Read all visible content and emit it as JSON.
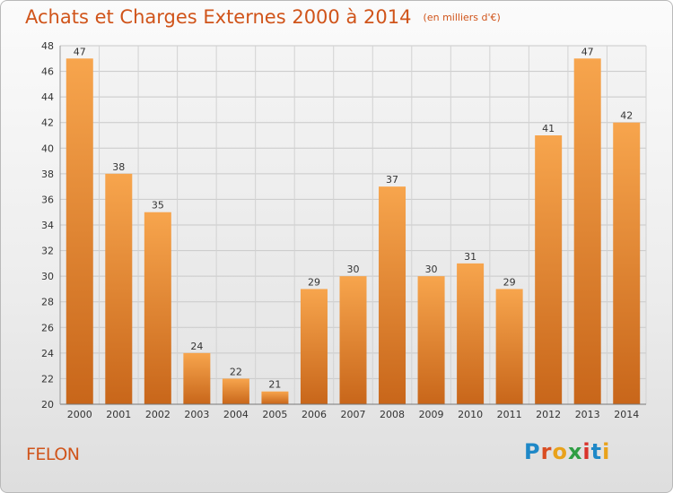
{
  "header": {
    "title": "Achats et Charges Externes 2000 à 2014",
    "subtitle": "(en milliers d'€)"
  },
  "footer": {
    "place": "FELON",
    "logo_letters": [
      "P",
      "r",
      "o",
      "x",
      "i",
      "t",
      "i"
    ],
    "logo_colors": [
      "#1e88c7",
      "#d94d22",
      "#e9a21b",
      "#2f9e44",
      "#d9332b",
      "#1e88c7",
      "#e9a21b"
    ]
  },
  "chart_data": {
    "type": "bar",
    "title": "Achats et Charges Externes 2000 à 2014",
    "subtitle": "(en milliers d'€)",
    "categories": [
      "2000",
      "2001",
      "2002",
      "2003",
      "2004",
      "2005",
      "2006",
      "2007",
      "2008",
      "2009",
      "2010",
      "2011",
      "2012",
      "2013",
      "2014"
    ],
    "values": [
      47,
      38,
      35,
      24,
      22,
      21,
      29,
      30,
      37,
      30,
      31,
      29,
      41,
      47,
      42
    ],
    "ylim": [
      20,
      48
    ],
    "yticks": [
      20,
      22,
      24,
      26,
      28,
      30,
      32,
      34,
      36,
      38,
      40,
      42,
      44,
      46,
      48
    ],
    "grid": true,
    "bar_color_top": "#f7a54d",
    "bar_color_bottom": "#c8661a"
  }
}
